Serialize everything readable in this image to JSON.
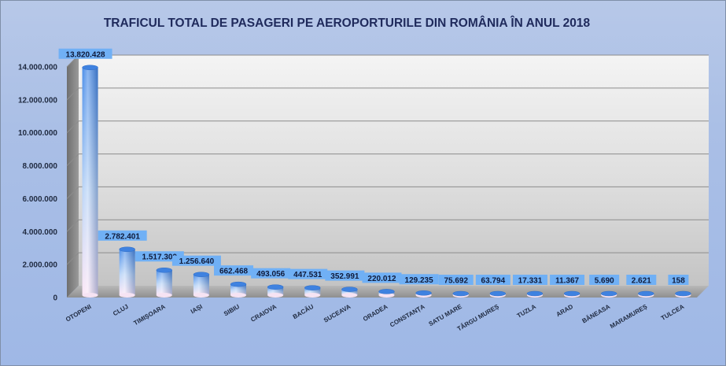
{
  "chart_data": {
    "type": "bar",
    "title": "TRAFICUL TOTAL DE PASAGERI PE AEROPORTURILE DIN ROMÂNIA ÎN ANUL 2018",
    "xlabel": "",
    "ylabel": "",
    "ylim": [
      0,
      14000000
    ],
    "y_ticks": [
      "0",
      "2.000.000",
      "4.000.000",
      "6.000.000",
      "8.000.000",
      "10.000.000",
      "12.000.000",
      "14.000.000"
    ],
    "y_tick_values": [
      0,
      2000000,
      4000000,
      6000000,
      8000000,
      10000000,
      12000000,
      14000000
    ],
    "grid": true,
    "legend": "none",
    "categories": [
      "OTOPENI",
      "CLUJ",
      "TIMIȘOARA",
      "IAȘI",
      "SIBIU",
      "CRAIOVA",
      "BACĂU",
      "SUCEAVA",
      "ORADEA",
      "CONSTANȚA",
      "SATU MARE",
      "TÂRGU MUREȘ",
      "TUZLA",
      "ARAD",
      "BĂNEASA",
      "MARAMUREȘ",
      "TULCEA"
    ],
    "values": [
      13820428,
      2782401,
      1517309,
      1256640,
      662468,
      493056,
      447531,
      352991,
      220012,
      129235,
      75692,
      63794,
      17331,
      11367,
      5690,
      2621,
      158
    ],
    "data_labels": [
      "13.820.428",
      "2.782.401",
      "1.517.309",
      "1.256.640",
      "662.468",
      "493.056",
      "447.531",
      "352.991",
      "220.012",
      "129.235",
      "75.692",
      "63.794",
      "17.331",
      "11.367",
      "5.690",
      "2.621",
      "158"
    ],
    "colors": {
      "bar_top": "#4a8de8",
      "bar_bottom": "#fbe6f6",
      "label_bg": "#6fb0f5",
      "label_text": "#0f1a3a",
      "background": "#a9bfe6"
    }
  }
}
